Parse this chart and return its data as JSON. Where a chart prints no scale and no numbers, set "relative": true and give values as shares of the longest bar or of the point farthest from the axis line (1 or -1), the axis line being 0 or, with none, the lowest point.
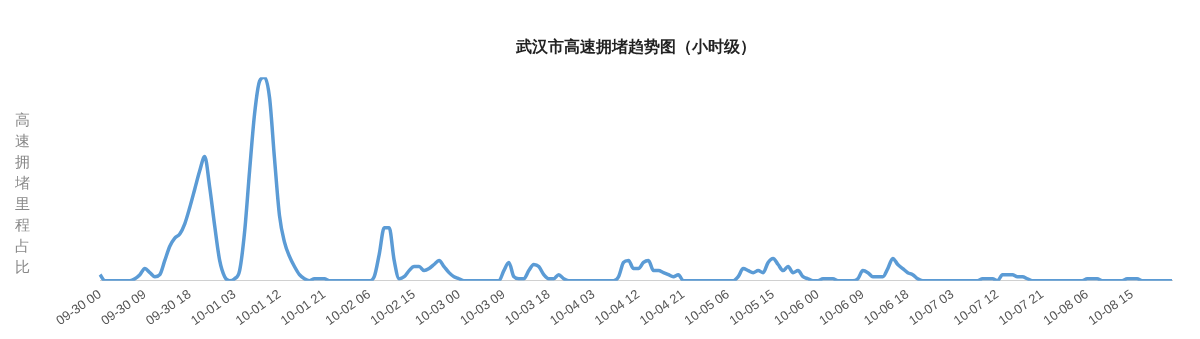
{
  "chart_data": {
    "type": "line",
    "title": "武汉市高速拥堵趋势图（小时级）",
    "ylabel": "高速拥堵里程占比",
    "relative": true,
    "categories": [
      "09-30 00",
      null,
      null,
      null,
      null,
      null,
      null,
      null,
      null,
      "09-30 09",
      null,
      null,
      null,
      null,
      null,
      null,
      null,
      null,
      "09-30 18",
      null,
      null,
      null,
      null,
      null,
      null,
      null,
      null,
      "10-01 03",
      null,
      null,
      null,
      null,
      null,
      null,
      null,
      null,
      "10-01 12",
      null,
      null,
      null,
      null,
      null,
      null,
      null,
      null,
      "10-01 21",
      null,
      null,
      null,
      null,
      null,
      null,
      null,
      null,
      "10-02 06",
      null,
      null,
      null,
      null,
      null,
      null,
      null,
      null,
      "10-02 15",
      null,
      null,
      null,
      null,
      null,
      null,
      null,
      null,
      "10-03 00",
      null,
      null,
      null,
      null,
      null,
      null,
      null,
      null,
      "10-03 09",
      null,
      null,
      null,
      null,
      null,
      null,
      null,
      null,
      "10-03 18",
      null,
      null,
      null,
      null,
      null,
      null,
      null,
      null,
      "10-04 03",
      null,
      null,
      null,
      null,
      null,
      null,
      null,
      null,
      "10-04 12",
      null,
      null,
      null,
      null,
      null,
      null,
      null,
      null,
      "10-04 21",
      null,
      null,
      null,
      null,
      null,
      null,
      null,
      null,
      "10-05 06",
      null,
      null,
      null,
      null,
      null,
      null,
      null,
      null,
      "10-05 15",
      null,
      null,
      null,
      null,
      null,
      null,
      null,
      null,
      "10-06 00",
      null,
      null,
      null,
      null,
      null,
      null,
      null,
      null,
      "10-06 09",
      null,
      null,
      null,
      null,
      null,
      null,
      null,
      null,
      "10-06 18",
      null,
      null,
      null,
      null,
      null,
      null,
      null,
      null,
      "10-07 03",
      null,
      null,
      null,
      null,
      null,
      null,
      null,
      null,
      "10-07 12",
      null,
      null,
      null,
      null,
      null,
      null,
      null,
      null,
      "10-07 21",
      null,
      null,
      null,
      null,
      null,
      null,
      null,
      null,
      "10-08 06",
      null,
      null,
      null,
      null,
      null,
      null,
      null,
      null,
      "10-08 15",
      null,
      null,
      null,
      null,
      null,
      null,
      null,
      null
    ],
    "series": [
      {
        "color": "#5b9bd5",
        "values": [
          0.03,
          0,
          0,
          0,
          0,
          0,
          0,
          0.01,
          0.03,
          0.06,
          0.04,
          0.02,
          0.03,
          0.1,
          0.17,
          0.21,
          0.23,
          0.28,
          0.36,
          0.45,
          0.54,
          0.61,
          0.46,
          0.27,
          0.1,
          0.02,
          0,
          0.01,
          0.05,
          0.24,
          0.54,
          0.82,
          0.98,
          1,
          0.9,
          0.6,
          0.32,
          0.19,
          0.12,
          0.07,
          0.03,
          0.01,
          0,
          0.01,
          0.01,
          0.01,
          0,
          0,
          0,
          0,
          0,
          0,
          0,
          0,
          0,
          0.02,
          0.13,
          0.26,
          0.26,
          0.1,
          0.01,
          0.02,
          0.05,
          0.07,
          0.07,
          0.05,
          0.06,
          0.08,
          0.1,
          0.07,
          0.04,
          0.02,
          0.01,
          0,
          0,
          0,
          0,
          0,
          0,
          0,
          0,
          0.05,
          0.09,
          0.02,
          0.01,
          0.01,
          0.05,
          0.08,
          0.07,
          0.03,
          0.01,
          0.01,
          0.03,
          0.01,
          0,
          0,
          0,
          0,
          0,
          0,
          0,
          0,
          0,
          0,
          0.02,
          0.09,
          0.1,
          0.06,
          0.06,
          0.09,
          0.1,
          0.05,
          0.05,
          0.04,
          0.03,
          0.02,
          0.03,
          0,
          0,
          0,
          0,
          0,
          0,
          0,
          0,
          0,
          0,
          0,
          0.02,
          0.06,
          0.05,
          0.04,
          0.05,
          0.04,
          0.09,
          0.11,
          0.08,
          0.05,
          0.07,
          0.04,
          0.05,
          0.02,
          0.01,
          0,
          0,
          0.01,
          0.01,
          0.01,
          0,
          0,
          0,
          0,
          0.01,
          0.05,
          0.04,
          0.02,
          0.02,
          0.02,
          0.06,
          0.11,
          0.08,
          0.06,
          0.04,
          0.03,
          0.01,
          0,
          0,
          0,
          0,
          0,
          0,
          0,
          0,
          0,
          0,
          0,
          0,
          0.01,
          0.01,
          0.01,
          0,
          0.03,
          0.03,
          0.03,
          0.02,
          0.02,
          0.01,
          0,
          0,
          0,
          0,
          0,
          0,
          0,
          0,
          0,
          0,
          0,
          0.01,
          0.01,
          0.01,
          0,
          0,
          0,
          0,
          0,
          0.01,
          0.01,
          0.01,
          0,
          0,
          0,
          0,
          0,
          0,
          0
        ]
      }
    ]
  }
}
